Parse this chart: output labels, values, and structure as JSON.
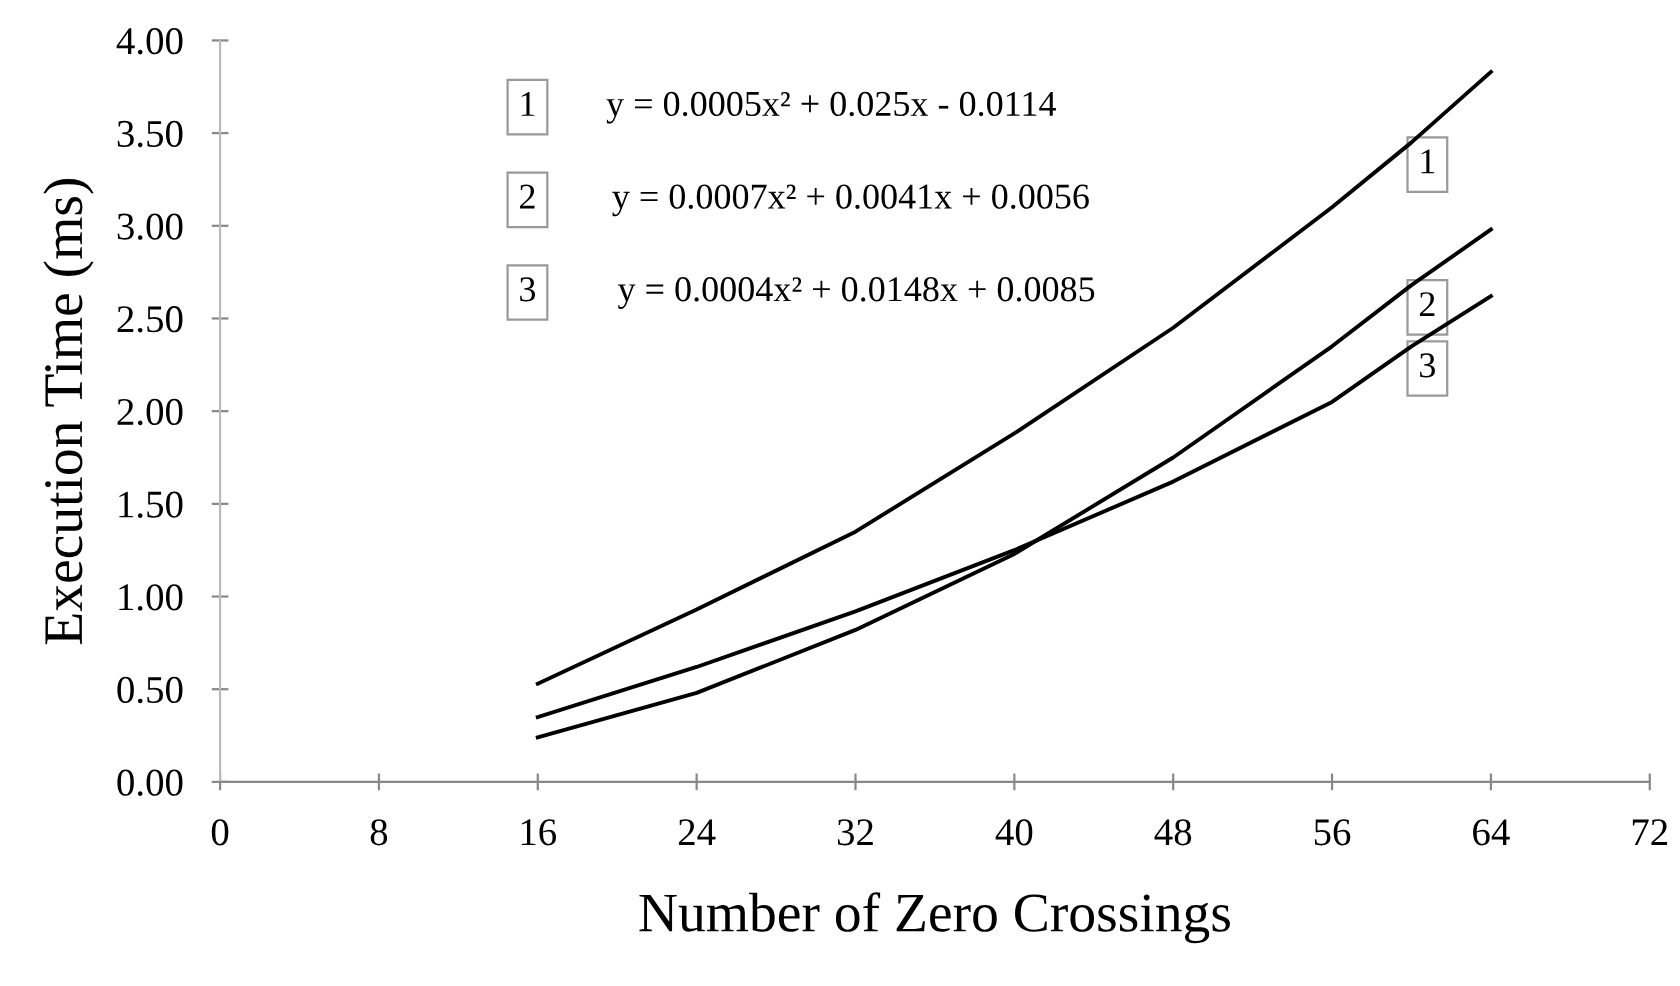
{
  "chart_data": {
    "type": "line",
    "xlabel": "Number of Zero Crossings",
    "ylabel": "Execution Time (ms)",
    "x": [
      16,
      24,
      32,
      40,
      48,
      56,
      60,
      64
    ],
    "series": [
      {
        "name": "1",
        "color": "#000000",
        "values": [
          0.53,
          0.93,
          1.35,
          1.88,
          2.45,
          3.1,
          3.45,
          3.83
        ]
      },
      {
        "name": "2",
        "color": "#000000",
        "values": [
          0.24,
          0.48,
          0.82,
          1.23,
          1.75,
          2.35,
          2.68,
          2.98
        ]
      },
      {
        "name": "3",
        "color": "#000000",
        "values": [
          0.35,
          0.62,
          0.92,
          1.25,
          1.62,
          2.05,
          2.35,
          2.62
        ]
      }
    ],
    "annotations": [
      "y = 0.0005x² + 0.025x - 0.0114",
      "y = 0.0007x² + 0.0041x + 0.0056",
      "y = 0.0004x² + 0.0148x + 0.0085"
    ],
    "xlim": [
      0,
      72
    ],
    "xticks": [
      0,
      8,
      16,
      24,
      32,
      40,
      48,
      56,
      64,
      72
    ],
    "ylim": [
      0,
      4
    ],
    "yticks": [
      {
        "value": 0,
        "label": "0.00"
      },
      {
        "value": 0.5,
        "label": "0.50"
      },
      {
        "value": 1,
        "label": "1.00"
      },
      {
        "value": 1.5,
        "label": "1.50"
      },
      {
        "value": 2,
        "label": "2.00"
      },
      {
        "value": 2.5,
        "label": "2.50"
      },
      {
        "value": 3,
        "label": "3.00"
      },
      {
        "value": 3.5,
        "label": "3.50"
      },
      {
        "value": 4,
        "label": "4.00"
      }
    ],
    "grid": false,
    "legend": false,
    "marker": "none",
    "line_style": "solid"
  }
}
